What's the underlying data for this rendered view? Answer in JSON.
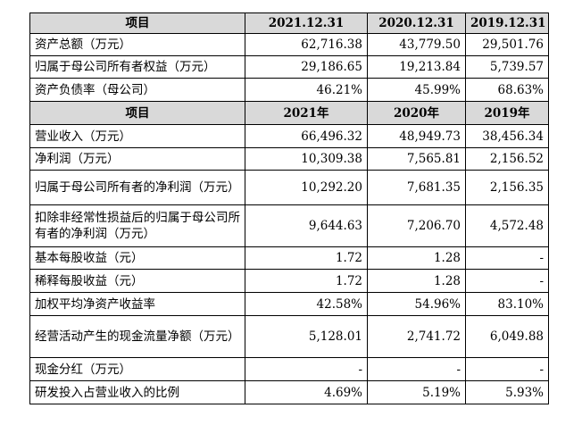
{
  "balance_header": {
    "label": "项目",
    "years": [
      "2021.12.31",
      "2020.12.31",
      "2019.12.31"
    ]
  },
  "balance_rows": [
    {
      "label": "资产总额（万元）",
      "values": [
        "62,716.38",
        "43,779.50",
        "29,501.76"
      ]
    },
    {
      "label": "归属于母公司所有者权益（万元）",
      "values": [
        "29,186.65",
        "19,213.84",
        "5,739.57"
      ]
    },
    {
      "label": "资产负债率（母公司）",
      "values": [
        "46.21%",
        "45.99%",
        "68.63%"
      ]
    }
  ],
  "income_header": {
    "label": "项目",
    "years": [
      "2021年",
      "2020年",
      "2019年"
    ]
  },
  "income_rows": [
    {
      "label": "营业收入（万元）",
      "values": [
        "66,496.32",
        "48,949.73",
        "38,456.34"
      ]
    },
    {
      "label": "净利润（万元）",
      "values": [
        "10,309.38",
        "7,565.81",
        "2,156.52"
      ]
    },
    {
      "label": "归属于母公司所有者的净利润（万元）",
      "values": [
        "10,292.20",
        "7,681.35",
        "2,156.35"
      ]
    },
    {
      "label": "扣除非经常性损益后的归属于母公司所有者的净利润（万元）",
      "values": [
        "9,644.63",
        "7,206.70",
        "4,572.48"
      ]
    },
    {
      "label": "基本每股收益（元）",
      "values": [
        "1.72",
        "1.28",
        "-"
      ]
    },
    {
      "label": "稀释每股收益（元）",
      "values": [
        "1.72",
        "1.28",
        "-"
      ]
    },
    {
      "label": "加权平均净资产收益率",
      "values": [
        "42.58%",
        "54.96%",
        "83.10%"
      ]
    },
    {
      "label": "经营活动产生的现金流量净额（万元）",
      "values": [
        "5,128.01",
        "2,741.72",
        "6,049.88"
      ]
    },
    {
      "label": "现金分红（万元）",
      "values": [
        "-",
        "-",
        "-"
      ]
    },
    {
      "label": "研发投入占营业收入的比例",
      "values": [
        "4.69%",
        "5.19%",
        "5.93%"
      ]
    }
  ]
}
